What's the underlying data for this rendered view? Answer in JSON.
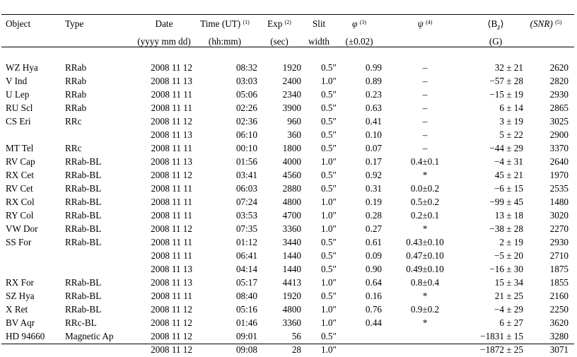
{
  "table": {
    "headers": {
      "object": "Object",
      "type": "Type",
      "date": "Date",
      "date_unit": "(yyyy mm dd)",
      "time": "Time (UT)",
      "time_note": "(1)",
      "time_unit": "(hh:mm)",
      "exp": "Exp",
      "exp_note": "(2)",
      "exp_unit": "(sec)",
      "slit": "Slit",
      "slit_unit": "width",
      "phi": "φ",
      "phi_note": "(3)",
      "phi_unit": "(±0.02)",
      "psi": "ψ",
      "psi_note": "(4)",
      "bz": "⟨B",
      "bz_sub": "z",
      "bz_close": "⟩",
      "bz_unit": "(G)",
      "snr": "(SNR)",
      "snr_note": "(5)"
    },
    "rows": [
      {
        "object": "WZ Hya",
        "type": "RRab",
        "date": "2008 11 12",
        "time": "08:32",
        "exp": "1920",
        "slit": "0.5″",
        "phi": "0.99",
        "psi": "–",
        "bz": "32 ± 21",
        "snr": "2620"
      },
      {
        "object": "V Ind",
        "type": "RRab",
        "date": "2008 11 13",
        "time": "03:03",
        "exp": "2400",
        "slit": "1.0″",
        "phi": "0.89",
        "psi": "–",
        "bz": "−57 ± 28",
        "snr": "2820"
      },
      {
        "object": "U Lep",
        "type": "RRab",
        "date": "2008 11 11",
        "time": "05:06",
        "exp": "2340",
        "slit": "0.5″",
        "phi": "0.23",
        "psi": "–",
        "bz": "−15 ± 19",
        "snr": "2930"
      },
      {
        "object": "RU Scl",
        "type": "RRab",
        "date": "2008 11 11",
        "time": "02:26",
        "exp": "3900",
        "slit": "0.5″",
        "phi": "0.63",
        "psi": "–",
        "bz": "6 ± 14",
        "snr": "2865"
      },
      {
        "object": "CS Eri",
        "type": "RRc",
        "date": "2008 11 12",
        "time": "02:36",
        "exp": "960",
        "slit": "0.5″",
        "phi": "0.41",
        "psi": "–",
        "bz": "3 ± 19",
        "snr": "3025"
      },
      {
        "object": "",
        "type": "",
        "date": "2008 11 13",
        "time": "06:10",
        "exp": "360",
        "slit": "0.5″",
        "phi": "0.10",
        "psi": "–",
        "bz": "5 ± 22",
        "snr": "2900"
      },
      {
        "object": "MT Tel",
        "type": "RRc",
        "date": "2008 11 11",
        "time": "00:10",
        "exp": "1800",
        "slit": "0.5″",
        "phi": "0.07",
        "psi": "–",
        "bz": "−44 ± 29",
        "snr": "3370"
      },
      {
        "object": "RV Cap",
        "type": "RRab-BL",
        "date": "2008 11 13",
        "time": "01:56",
        "exp": "4000",
        "slit": "1.0″",
        "phi": "0.17",
        "psi": "0.4±0.1",
        "bz": "−4 ± 31",
        "snr": "2640"
      },
      {
        "object": "RX Cet",
        "type": "RRab-BL",
        "date": "2008 11 12",
        "time": "03:41",
        "exp": "4560",
        "slit": "0.5″",
        "phi": "0.92",
        "psi": "*",
        "bz": "45 ± 21",
        "snr": "1970"
      },
      {
        "object": "RV Cet",
        "type": "RRab-BL",
        "date": "2008 11 11",
        "time": "06:03",
        "exp": "2880",
        "slit": "0.5″",
        "phi": "0.31",
        "psi": "0.0±0.2",
        "bz": "−6 ± 15",
        "snr": "2535"
      },
      {
        "object": "RX Col",
        "type": "RRab-BL",
        "date": "2008 11 11",
        "time": "07:24",
        "exp": "4800",
        "slit": "1.0″",
        "phi": "0.19",
        "psi": "0.5±0.2",
        "bz": "−99 ± 45",
        "snr": "1480"
      },
      {
        "object": "RY Col",
        "type": "RRab-BL",
        "date": "2008 11 11",
        "time": "03:53",
        "exp": "4700",
        "slit": "1.0″",
        "phi": "0.28",
        "psi": "0.2±0.1",
        "bz": "13 ± 18",
        "snr": "3020"
      },
      {
        "object": "VW Dor",
        "type": "RRab-BL",
        "date": "2008 11 12",
        "time": "07:35",
        "exp": "3360",
        "slit": "1.0″",
        "phi": "0.27",
        "psi": "*",
        "bz": "−38 ± 28",
        "snr": "2270"
      },
      {
        "object": "SS For",
        "type": "RRab-BL",
        "date": "2008 11 11",
        "time": "01:12",
        "exp": "3440",
        "slit": "0.5″",
        "phi": "0.61",
        "psi": "0.43±0.10",
        "bz": "2 ± 19",
        "snr": "2930"
      },
      {
        "object": "",
        "type": "",
        "date": "2008 11 11",
        "time": "06:41",
        "exp": "1440",
        "slit": "0.5″",
        "phi": "0.09",
        "psi": "0.47±0.10",
        "bz": "−5 ± 20",
        "snr": "2710"
      },
      {
        "object": "",
        "type": "",
        "date": "2008 11 13",
        "time": "04:14",
        "exp": "1440",
        "slit": "0.5″",
        "phi": "0.90",
        "psi": "0.49±0.10",
        "bz": "−16 ± 30",
        "snr": "1875"
      },
      {
        "object": "RX For",
        "type": "RRab-BL",
        "date": "2008 11 13",
        "time": "05:17",
        "exp": "4413",
        "slit": "1.0″",
        "phi": "0.64",
        "psi": "0.8±0.4",
        "bz": "15 ± 34",
        "snr": "1855"
      },
      {
        "object": "SZ Hya",
        "type": "RRab-BL",
        "date": "2008 11 11",
        "time": "08:40",
        "exp": "1920",
        "slit": "0.5″",
        "phi": "0.16",
        "psi": "*",
        "bz": "21 ± 25",
        "snr": "2160"
      },
      {
        "object": "X Ret",
        "type": "RRab-BL",
        "date": "2008 11 12",
        "time": "05:16",
        "exp": "4800",
        "slit": "1.0″",
        "phi": "0.76",
        "psi": "0.9±0.2",
        "bz": "−4 ± 29",
        "snr": "2250"
      },
      {
        "object": "BV Aqr",
        "type": "RRc-BL",
        "date": "2008 11 12",
        "time": "01:46",
        "exp": "3360",
        "slit": "1.0″",
        "phi": "0.44",
        "psi": "*",
        "bz": "6 ± 27",
        "snr": "3620"
      },
      {
        "object": "HD 94660",
        "type": "Magnetic Ap",
        "date": "2008 11 12",
        "time": "09:01",
        "exp": "56",
        "slit": "0.5″",
        "phi": "",
        "psi": "",
        "bz": "−1831 ± 15",
        "snr": "3280"
      },
      {
        "object": "",
        "type": "",
        "date": "2008 11 12",
        "time": "09:08",
        "exp": "28",
        "slit": "1.0″",
        "phi": "",
        "psi": "",
        "bz": "−1872 ± 25",
        "snr": "3071"
      }
    ]
  }
}
